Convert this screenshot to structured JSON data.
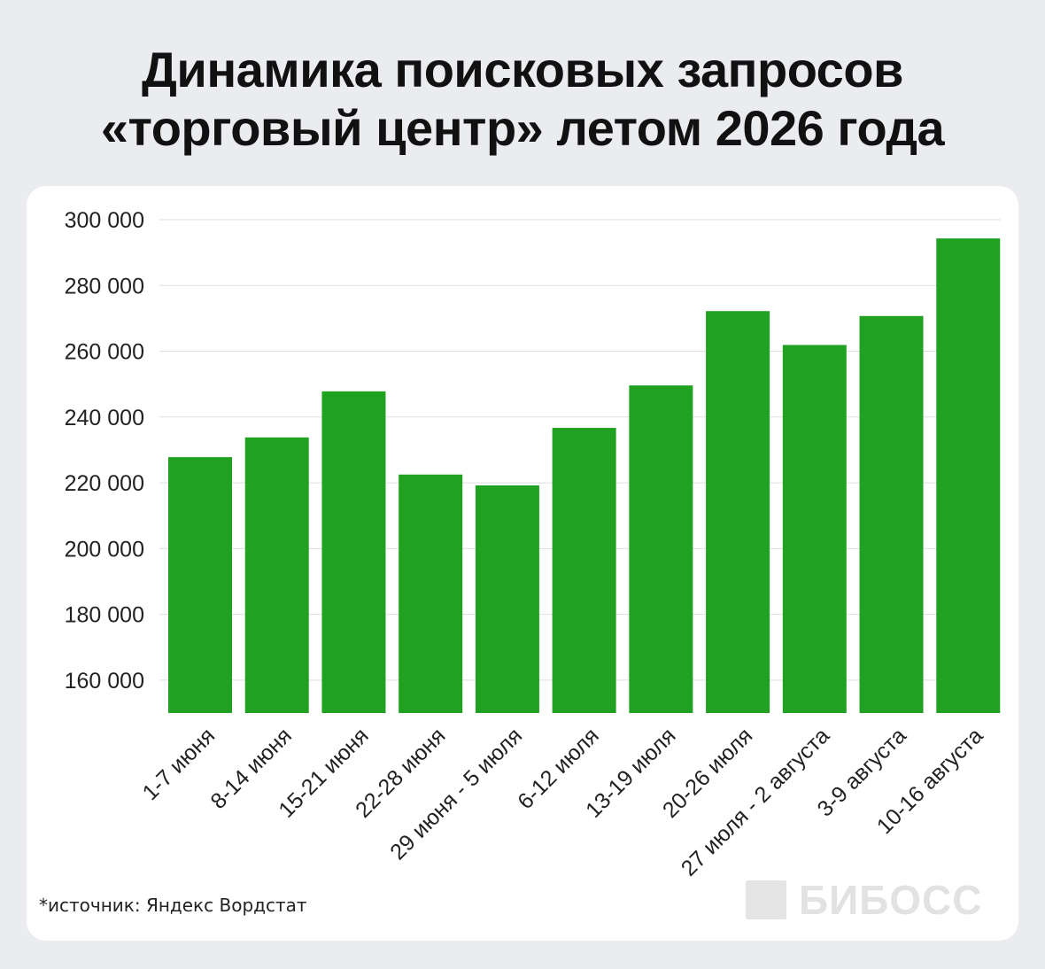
{
  "title": {
    "line1": "Динамика поисковых запросов",
    "line2": "«торговый центр» летом 2026 года"
  },
  "footnote": "*источник: Яндекс Вордстат",
  "watermark": "БИБОСС",
  "colors": {
    "bar": "#21a121",
    "grid": "#dedede",
    "background": "#ebecef",
    "card": "#ffffff"
  },
  "chart_data": {
    "type": "bar",
    "title": "Динамика поисковых запросов «торговый центр» летом 2026 года",
    "xlabel": "",
    "ylabel": "",
    "categories": [
      "1-7 июня",
      "8-14 июня",
      "15-21 июня",
      "22-28 июня",
      "29 июня - 5 июля",
      "6-12 июля",
      "13-19 июля",
      "20-26 июля",
      "27 июля - 2 августа",
      "3-9 августа",
      "10-16 августа"
    ],
    "values": [
      227800,
      233800,
      247800,
      222500,
      219200,
      236700,
      249600,
      272200,
      261900,
      270700,
      294300
    ],
    "ylim": [
      150000,
      300000
    ],
    "yticks": [
      160000,
      180000,
      200000,
      220000,
      240000,
      260000,
      280000,
      300000
    ],
    "ytick_labels": [
      "160 000",
      "180 000",
      "200 000",
      "220 000",
      "240 000",
      "260 000",
      "280 000",
      "300 000"
    ],
    "grid": true,
    "legend": "none"
  }
}
